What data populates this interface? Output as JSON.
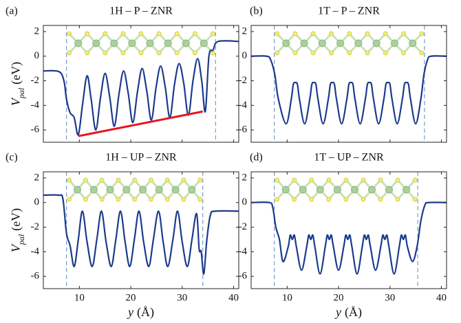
{
  "chart_data": [
    {
      "type": "line",
      "panel": "(a)",
      "title": "1H – P – ZNR",
      "ylabel": {
        "symbol": "V",
        "sub": "pal",
        "unit": "(eV)"
      },
      "xlim": [
        3,
        41
      ],
      "ylim": [
        -7,
        2.5
      ],
      "xticks": [
        10,
        20,
        30,
        40
      ],
      "yticks": [
        2,
        0,
        -2,
        -4,
        -6
      ],
      "vlines": [
        7.5,
        36.5
      ],
      "series": [
        {
          "color": "#1a3a8c",
          "x": [
            3,
            6,
            7,
            7.5,
            8.2,
            9,
            9.8,
            10.6,
            11.5,
            12.3,
            13.2,
            14.1,
            15,
            15.9,
            16.8,
            17.7,
            18.6,
            19.5,
            20.4,
            21.3,
            22.2,
            23.1,
            24,
            24.9,
            25.8,
            26.7,
            27.6,
            28.5,
            29.4,
            30.3,
            31.2,
            32.1,
            33,
            33.8,
            34.5,
            35.2,
            36,
            37,
            41
          ],
          "values": [
            -1.2,
            -1.25,
            -2,
            -3.5,
            -4.6,
            -5,
            -6.4,
            -4,
            -1.6,
            -3.5,
            -6,
            -3.4,
            -1.4,
            -3.3,
            -5.7,
            -3.1,
            -1.2,
            -3,
            -5.4,
            -2.9,
            -1,
            -2.8,
            -5.2,
            -2.6,
            -0.8,
            -2.5,
            -5,
            -2.3,
            -0.6,
            -2.2,
            -4.8,
            -2,
            -0.2,
            -2,
            -4.5,
            0,
            0.5,
            1.2,
            1.2
          ]
        },
        {
          "color": "#e8141c",
          "straight": true,
          "x": [
            9.8,
            34
          ],
          "values": [
            -6.5,
            -4.5
          ]
        }
      ]
    },
    {
      "type": "line",
      "panel": "(b)",
      "title": "1T – P – ZNR",
      "xlim": [
        3,
        41
      ],
      "ylim": [
        -7,
        2.5
      ],
      "xticks": [
        10,
        20,
        30,
        40
      ],
      "yticks": [
        2,
        0,
        -2,
        -4,
        -6
      ],
      "vlines": [
        7.5,
        36.7
      ],
      "series": [
        {
          "color": "#1a3a8c",
          "x": [
            3,
            6,
            6.8,
            7.6,
            8.3,
            9.8,
            10.8,
            11.2,
            11.6,
            12,
            12.4,
            13.4,
            14.4,
            14.8,
            15.2,
            15.6,
            16,
            17,
            18,
            18.4,
            18.8,
            19.2,
            19.6,
            20.6,
            21.6,
            22,
            22.4,
            22.8,
            23.2,
            24.2,
            25.2,
            25.6,
            26,
            26.4,
            26.8,
            27.8,
            28.8,
            29.2,
            29.6,
            30,
            30.4,
            31.4,
            32.4,
            32.8,
            33.2,
            33.6,
            34,
            35,
            36,
            36.6,
            37.3,
            38,
            41
          ],
          "values": [
            0,
            0,
            -0.3,
            -1.5,
            -3.5,
            -5.5,
            -3.5,
            -2.3,
            -2.15,
            -2.3,
            -3.5,
            -5.5,
            -3.5,
            -2.3,
            -2.15,
            -2.3,
            -3.5,
            -5.5,
            -3.5,
            -2.3,
            -2.15,
            -2.3,
            -3.5,
            -5.5,
            -3.5,
            -2.3,
            -2.15,
            -2.3,
            -3.5,
            -5.5,
            -3.5,
            -2.3,
            -2.15,
            -2.3,
            -3.5,
            -5.5,
            -3.5,
            -2.3,
            -2.15,
            -2.3,
            -3.5,
            -5.5,
            -3.5,
            -2.3,
            -2.15,
            -2.3,
            -3.5,
            -5.5,
            -3.5,
            -1.5,
            -0.3,
            0,
            0
          ]
        }
      ]
    },
    {
      "type": "line",
      "panel": "(c)",
      "title": "1H – UP – ZNR",
      "ylabel": {
        "symbol": "V",
        "sub": "pal",
        "unit": "(eV)"
      },
      "xlabel": {
        "symbol": "y",
        "unit": "(Å)"
      },
      "xlim": [
        3,
        41
      ],
      "ylim": [
        -7,
        2.5
      ],
      "xticks": [
        10,
        20,
        30,
        40
      ],
      "yticks": [
        2,
        0,
        -2,
        -4,
        -6
      ],
      "vlines": [
        7.5,
        34
      ],
      "series": [
        {
          "color": "#1a3a8c",
          "x": [
            3,
            6,
            6.8,
            7.5,
            8.2,
            9,
            9.8,
            10.6,
            11.5,
            12.5,
            13.4,
            14.3,
            15.2,
            16.2,
            17.1,
            18,
            18.9,
            19.8,
            20.7,
            21.6,
            22.5,
            23.5,
            24.4,
            25.4,
            26.3,
            27.2,
            28.2,
            29.1,
            30,
            31,
            31.9,
            32.8,
            33.3,
            33.7,
            34.2,
            34.8,
            35.5,
            36.5,
            41
          ],
          "values": [
            0.6,
            0.6,
            0.3,
            -2.5,
            -3.5,
            -5.2,
            -3,
            -0.7,
            -3.2,
            -5.2,
            -3,
            -0.7,
            -3.2,
            -5.2,
            -3,
            -0.7,
            -3.2,
            -5.2,
            -3,
            -0.7,
            -3.2,
            -5.2,
            -3,
            -0.7,
            -3.2,
            -5.2,
            -3,
            -0.7,
            -3.2,
            -5.2,
            -3,
            -0.9,
            -3.8,
            -4,
            -5.8,
            -3,
            -1,
            -0.7,
            -0.7
          ]
        }
      ]
    },
    {
      "type": "line",
      "panel": "(d)",
      "title": "1T – UP – ZNR",
      "xlabel": {
        "symbol": "y",
        "unit": "(Å)"
      },
      "xlim": [
        3,
        41
      ],
      "ylim": [
        -7,
        2.5
      ],
      "xticks": [
        10,
        20,
        30,
        40
      ],
      "yticks": [
        2,
        0,
        -2,
        -4,
        -6
      ],
      "vlines": [
        7.5,
        35.4
      ],
      "series": [
        {
          "color": "#1a3a8c",
          "x": [
            3,
            6.5,
            7.2,
            7.8,
            8.5,
            9.2,
            10.2,
            10.6,
            11,
            11.4,
            11.8,
            12.8,
            13.8,
            14.2,
            14.6,
            15,
            15.4,
            16.4,
            17.4,
            17.8,
            18.2,
            18.6,
            19,
            20,
            21,
            21.4,
            21.8,
            22.2,
            22.6,
            23.6,
            24.6,
            25,
            25.4,
            25.8,
            26.2,
            27.2,
            28.2,
            28.6,
            29,
            29.4,
            29.8,
            30.8,
            31.8,
            32.2,
            32.6,
            33,
            33.4,
            34.4,
            35.3,
            36,
            36.8,
            37.5,
            41
          ],
          "values": [
            0,
            0,
            -0.4,
            -2,
            -3,
            -4.8,
            -3.6,
            -2.65,
            -3,
            -2.65,
            -3.6,
            -5.5,
            -3.6,
            -2.65,
            -3,
            -2.65,
            -3.6,
            -5.8,
            -3.6,
            -2.65,
            -3,
            -2.65,
            -3.6,
            -5.5,
            -3.6,
            -2.65,
            -3,
            -2.65,
            -3.6,
            -5.8,
            -3.6,
            -2.65,
            -3,
            -2.65,
            -3.6,
            -5.5,
            -3.6,
            -2.65,
            -3,
            -2.65,
            -3.6,
            -5.8,
            -3.6,
            -2.65,
            -3,
            -2.65,
            -3.6,
            -4.8,
            -3.5,
            -1.5,
            -0.2,
            0,
            0
          ]
        }
      ]
    }
  ]
}
